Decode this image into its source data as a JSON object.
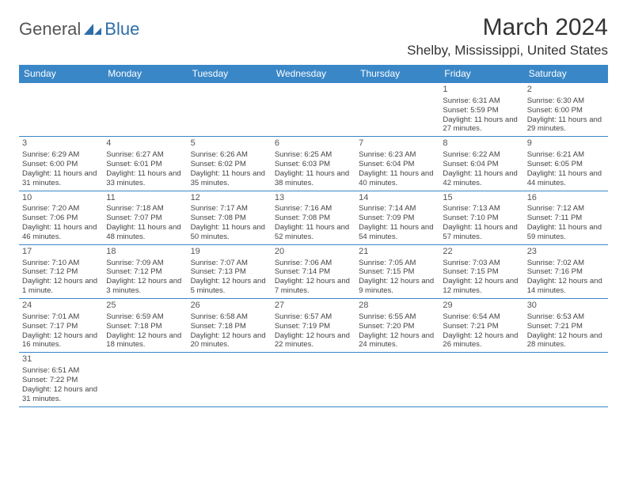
{
  "logo": {
    "text1": "General",
    "text2": "Blue"
  },
  "title": "March 2024",
  "location": "Shelby, Mississippi, United States",
  "colors": {
    "header_bg": "#3a87c7",
    "header_fg": "#ffffff",
    "border": "#3a87c7",
    "logo_blue": "#2d6da8",
    "logo_gray": "#555555"
  },
  "weekdays": [
    "Sunday",
    "Monday",
    "Tuesday",
    "Wednesday",
    "Thursday",
    "Friday",
    "Saturday"
  ],
  "layout": {
    "rows": 6,
    "cols": 7,
    "first_day_col": 5,
    "days_in_month": 31
  },
  "days": [
    {
      "n": 1,
      "sunrise": "6:31 AM",
      "sunset": "5:59 PM",
      "daylight": "11 hours and 27 minutes."
    },
    {
      "n": 2,
      "sunrise": "6:30 AM",
      "sunset": "6:00 PM",
      "daylight": "11 hours and 29 minutes."
    },
    {
      "n": 3,
      "sunrise": "6:29 AM",
      "sunset": "6:00 PM",
      "daylight": "11 hours and 31 minutes."
    },
    {
      "n": 4,
      "sunrise": "6:27 AM",
      "sunset": "6:01 PM",
      "daylight": "11 hours and 33 minutes."
    },
    {
      "n": 5,
      "sunrise": "6:26 AM",
      "sunset": "6:02 PM",
      "daylight": "11 hours and 35 minutes."
    },
    {
      "n": 6,
      "sunrise": "6:25 AM",
      "sunset": "6:03 PM",
      "daylight": "11 hours and 38 minutes."
    },
    {
      "n": 7,
      "sunrise": "6:23 AM",
      "sunset": "6:04 PM",
      "daylight": "11 hours and 40 minutes."
    },
    {
      "n": 8,
      "sunrise": "6:22 AM",
      "sunset": "6:04 PM",
      "daylight": "11 hours and 42 minutes."
    },
    {
      "n": 9,
      "sunrise": "6:21 AM",
      "sunset": "6:05 PM",
      "daylight": "11 hours and 44 minutes."
    },
    {
      "n": 10,
      "sunrise": "7:20 AM",
      "sunset": "7:06 PM",
      "daylight": "11 hours and 46 minutes."
    },
    {
      "n": 11,
      "sunrise": "7:18 AM",
      "sunset": "7:07 PM",
      "daylight": "11 hours and 48 minutes."
    },
    {
      "n": 12,
      "sunrise": "7:17 AM",
      "sunset": "7:08 PM",
      "daylight": "11 hours and 50 minutes."
    },
    {
      "n": 13,
      "sunrise": "7:16 AM",
      "sunset": "7:08 PM",
      "daylight": "11 hours and 52 minutes."
    },
    {
      "n": 14,
      "sunrise": "7:14 AM",
      "sunset": "7:09 PM",
      "daylight": "11 hours and 54 minutes."
    },
    {
      "n": 15,
      "sunrise": "7:13 AM",
      "sunset": "7:10 PM",
      "daylight": "11 hours and 57 minutes."
    },
    {
      "n": 16,
      "sunrise": "7:12 AM",
      "sunset": "7:11 PM",
      "daylight": "11 hours and 59 minutes."
    },
    {
      "n": 17,
      "sunrise": "7:10 AM",
      "sunset": "7:12 PM",
      "daylight": "12 hours and 1 minute."
    },
    {
      "n": 18,
      "sunrise": "7:09 AM",
      "sunset": "7:12 PM",
      "daylight": "12 hours and 3 minutes."
    },
    {
      "n": 19,
      "sunrise": "7:07 AM",
      "sunset": "7:13 PM",
      "daylight": "12 hours and 5 minutes."
    },
    {
      "n": 20,
      "sunrise": "7:06 AM",
      "sunset": "7:14 PM",
      "daylight": "12 hours and 7 minutes."
    },
    {
      "n": 21,
      "sunrise": "7:05 AM",
      "sunset": "7:15 PM",
      "daylight": "12 hours and 9 minutes."
    },
    {
      "n": 22,
      "sunrise": "7:03 AM",
      "sunset": "7:15 PM",
      "daylight": "12 hours and 12 minutes."
    },
    {
      "n": 23,
      "sunrise": "7:02 AM",
      "sunset": "7:16 PM",
      "daylight": "12 hours and 14 minutes."
    },
    {
      "n": 24,
      "sunrise": "7:01 AM",
      "sunset": "7:17 PM",
      "daylight": "12 hours and 16 minutes."
    },
    {
      "n": 25,
      "sunrise": "6:59 AM",
      "sunset": "7:18 PM",
      "daylight": "12 hours and 18 minutes."
    },
    {
      "n": 26,
      "sunrise": "6:58 AM",
      "sunset": "7:18 PM",
      "daylight": "12 hours and 20 minutes."
    },
    {
      "n": 27,
      "sunrise": "6:57 AM",
      "sunset": "7:19 PM",
      "daylight": "12 hours and 22 minutes."
    },
    {
      "n": 28,
      "sunrise": "6:55 AM",
      "sunset": "7:20 PM",
      "daylight": "12 hours and 24 minutes."
    },
    {
      "n": 29,
      "sunrise": "6:54 AM",
      "sunset": "7:21 PM",
      "daylight": "12 hours and 26 minutes."
    },
    {
      "n": 30,
      "sunrise": "6:53 AM",
      "sunset": "7:21 PM",
      "daylight": "12 hours and 28 minutes."
    },
    {
      "n": 31,
      "sunrise": "6:51 AM",
      "sunset": "7:22 PM",
      "daylight": "12 hours and 31 minutes."
    }
  ],
  "labels": {
    "sunrise": "Sunrise: ",
    "sunset": "Sunset: ",
    "daylight": "Daylight: "
  }
}
